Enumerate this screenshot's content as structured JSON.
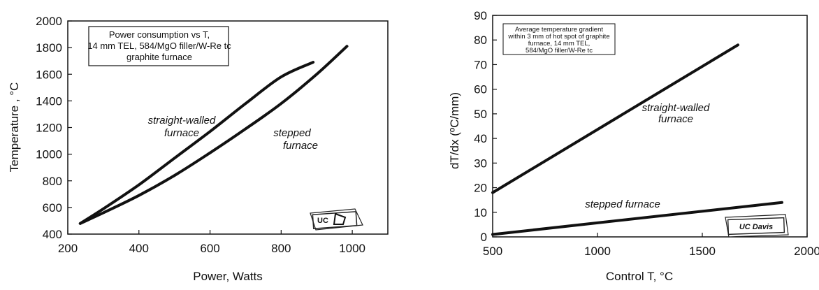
{
  "chart_data": [
    {
      "type": "line",
      "xlabel": "Power, Watts",
      "ylabel": "Temperature , °C",
      "xlim": [
        200,
        1100
      ],
      "ylim": [
        400,
        2000
      ],
      "xticks": [
        "200",
        "400",
        "600",
        "800",
        "1000"
      ],
      "yticks": [
        "400",
        "600",
        "800",
        "1000",
        "1200",
        "1400",
        "1600",
        "1800",
        "2000"
      ],
      "grid": false,
      "legend_box": [
        "Power consumption vs T,",
        "14 mm TEL, 584/MgO filler/W-Re tc",
        "graphite furnace"
      ],
      "series": [
        {
          "name": "straight-walled furnace",
          "label_lines": [
            "straight-walled",
            "furnace"
          ],
          "x": [
            235,
            300,
            400,
            500,
            600,
            700,
            800,
            890
          ],
          "y": [
            480,
            590,
            770,
            970,
            1170,
            1380,
            1580,
            1690
          ]
        },
        {
          "name": "stepped furnace",
          "label_lines": [
            "stepped",
            "furnace"
          ],
          "x": [
            235,
            300,
            400,
            500,
            600,
            700,
            800,
            900,
            985
          ],
          "y": [
            480,
            560,
            690,
            840,
            1010,
            1190,
            1380,
            1600,
            1810
          ]
        }
      ],
      "logo": "UC"
    },
    {
      "type": "line",
      "xlabel": "Control T, °C",
      "ylabel": "dT/dx  (ºC/mm)",
      "xlim": [
        500,
        2000
      ],
      "ylim": [
        0,
        90
      ],
      "xticks": [
        "500",
        "1000",
        "1500",
        "2000"
      ],
      "yticks": [
        "0",
        "10",
        "20",
        "30",
        "40",
        "50",
        "60",
        "70",
        "80",
        "90"
      ],
      "grid": false,
      "legend_box": [
        "Average temperature gradient",
        "within 3 mm of hot spot of graphite",
        "furnace, 14 mm TEL,",
        "584/MgO filler/W-Re tc"
      ],
      "series": [
        {
          "name": "straight-walled furnace",
          "label_lines": [
            "straight-walled",
            "furnace"
          ],
          "x": [
            500,
            1670
          ],
          "y": [
            18,
            78
          ]
        },
        {
          "name": "stepped furnace",
          "label_lines": [
            "stepped furnace"
          ],
          "x": [
            500,
            1880
          ],
          "y": [
            1,
            14
          ]
        }
      ],
      "logo": "UC Davis"
    }
  ]
}
